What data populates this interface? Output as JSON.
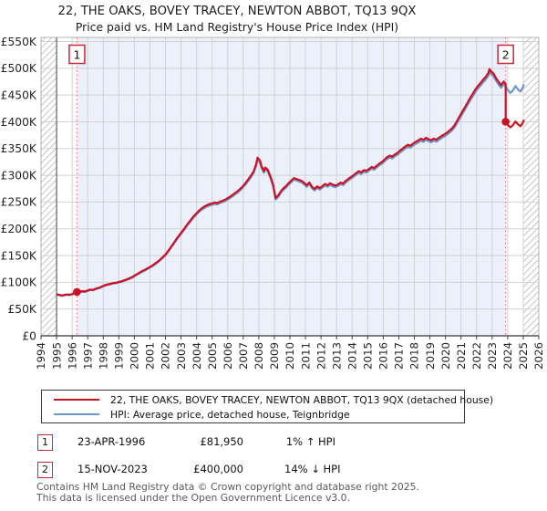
{
  "title": {
    "line1": "22, THE OAKS, BOVEY TRACEY, NEWTON ABBOT, TQ13 9QX",
    "line2": "Price paid vs. HM Land Registry's House Price Index (HPI)"
  },
  "footer": {
    "line1": "Contains HM Land Registry data © Crown copyright and database right 2025.",
    "line2": "This data is licensed under the Open Government Licence v3.0."
  },
  "chart_data": {
    "type": "line",
    "x_axis": {
      "range": [
        1994,
        2026
      ],
      "ticks": [
        1994,
        1995,
        1996,
        1997,
        1998,
        1999,
        2000,
        2001,
        2002,
        2003,
        2004,
        2005,
        2006,
        2007,
        2008,
        2009,
        2010,
        2011,
        2012,
        2013,
        2014,
        2015,
        2016,
        2017,
        2018,
        2019,
        2020,
        2021,
        2022,
        2023,
        2024,
        2025,
        2026
      ]
    },
    "y_axis": {
      "range_thousands": [
        0,
        550
      ],
      "tick_step_thousands": 50,
      "tick_labels": [
        "£0",
        "£50K",
        "£100K",
        "£150K",
        "£200K",
        "£250K",
        "£300K",
        "£350K",
        "£400K",
        "£450K",
        "£500K",
        "£550K"
      ]
    },
    "colors": {
      "price_line": "#cc1122",
      "hpi_line": "#6f96c9",
      "event_line": "#f4717f",
      "ownership_band": "#ebf0fa",
      "grid": "#d2d2d2",
      "hatch": "#c6c6c6",
      "marker_box_border": "#c8283c"
    },
    "ownership_band_years": [
      1996.31,
      2023.87
    ],
    "no_data_hatch_years": [
      [
        1994,
        1995.0
      ],
      [
        2025.04,
        2026
      ]
    ],
    "transactions": [
      {
        "label": "1",
        "date": "23-APR-1996",
        "year_decimal": 1996.31,
        "price_gbp": 81950,
        "price_display": "£81,950",
        "relative_to_hpi": "1% ↑ HPI"
      },
      {
        "label": "2",
        "date": "15-NOV-2023",
        "year_decimal": 2023.87,
        "price_gbp": 400000,
        "price_display": "£400,000",
        "relative_to_hpi": "14% ↓ HPI"
      }
    ],
    "series": [
      {
        "id": "price_paid",
        "legend": "22, THE OAKS, BOVEY TRACEY, NEWTON ABBOT, TQ13 9QX (detached house)",
        "color_key": "price_line",
        "derivation": "hpi_scaled_through_transactions"
      },
      {
        "id": "hpi",
        "legend": "HPI: Average price, detached house, Teignbridge",
        "color_key": "hpi_line",
        "points_year_valueK": [
          [
            1995.0,
            77.0
          ],
          [
            1995.17,
            75.8
          ],
          [
            1995.33,
            74.6
          ],
          [
            1995.5,
            75.6
          ],
          [
            1995.67,
            76.4
          ],
          [
            1995.83,
            75.9
          ],
          [
            1996.0,
            77.2
          ],
          [
            1996.17,
            79.5
          ],
          [
            1996.31,
            81.1
          ],
          [
            1996.5,
            81.8
          ],
          [
            1996.67,
            82.6
          ],
          [
            1996.83,
            82.0
          ],
          [
            1997.0,
            83.8
          ],
          [
            1997.17,
            85.6
          ],
          [
            1997.33,
            84.9
          ],
          [
            1997.5,
            86.8
          ],
          [
            1997.67,
            88.4
          ],
          [
            1997.83,
            90.1
          ],
          [
            1998.0,
            92.4
          ],
          [
            1998.17,
            94.1
          ],
          [
            1998.33,
            95.3
          ],
          [
            1998.5,
            96.6
          ],
          [
            1998.67,
            97.9
          ],
          [
            1998.83,
            98.3
          ],
          [
            1999.0,
            99.6
          ],
          [
            1999.17,
            100.8
          ],
          [
            1999.33,
            102.4
          ],
          [
            1999.5,
            104.2
          ],
          [
            1999.67,
            106.3
          ],
          [
            1999.83,
            108.1
          ],
          [
            2000.0,
            111.2
          ],
          [
            2000.17,
            114.1
          ],
          [
            2000.33,
            116.8
          ],
          [
            2000.5,
            119.6
          ],
          [
            2000.67,
            121.9
          ],
          [
            2000.83,
            124.6
          ],
          [
            2001.0,
            127.3
          ],
          [
            2001.17,
            130.2
          ],
          [
            2001.33,
            133.6
          ],
          [
            2001.5,
            137.2
          ],
          [
            2001.67,
            141.3
          ],
          [
            2001.83,
            145.6
          ],
          [
            2002.0,
            150.4
          ],
          [
            2002.17,
            156.8
          ],
          [
            2002.33,
            163.3
          ],
          [
            2002.5,
            170.2
          ],
          [
            2002.67,
            177.6
          ],
          [
            2002.83,
            184.1
          ],
          [
            2003.0,
            190.3
          ],
          [
            2003.17,
            196.8
          ],
          [
            2003.33,
            203.2
          ],
          [
            2003.5,
            209.8
          ],
          [
            2003.67,
            215.9
          ],
          [
            2003.83,
            221.6
          ],
          [
            2004.0,
            226.8
          ],
          [
            2004.17,
            231.7
          ],
          [
            2004.33,
            235.8
          ],
          [
            2004.5,
            238.9
          ],
          [
            2004.67,
            241.6
          ],
          [
            2004.83,
            243.5
          ],
          [
            2005.0,
            244.8
          ],
          [
            2005.17,
            246.5
          ],
          [
            2005.33,
            245.6
          ],
          [
            2005.5,
            247.9
          ],
          [
            2005.67,
            249.8
          ],
          [
            2005.83,
            251.7
          ],
          [
            2006.0,
            254.6
          ],
          [
            2006.17,
            257.8
          ],
          [
            2006.33,
            260.9
          ],
          [
            2006.5,
            264.6
          ],
          [
            2006.67,
            268.4
          ],
          [
            2006.83,
            272.6
          ],
          [
            2007.0,
            277.5
          ],
          [
            2007.17,
            283.4
          ],
          [
            2007.33,
            289.6
          ],
          [
            2007.5,
            296.4
          ],
          [
            2007.67,
            304.2
          ],
          [
            2007.83,
            317.5
          ],
          [
            2007.92,
            329.5
          ],
          [
            2008.08,
            323.8
          ],
          [
            2008.17,
            314.2
          ],
          [
            2008.33,
            304.6
          ],
          [
            2008.42,
            311.3
          ],
          [
            2008.58,
            306.8
          ],
          [
            2008.75,
            294.4
          ],
          [
            2008.92,
            279.6
          ],
          [
            2009.08,
            254.8
          ],
          [
            2009.25,
            259.6
          ],
          [
            2009.42,
            267.3
          ],
          [
            2009.58,
            272.6
          ],
          [
            2009.75,
            276.8
          ],
          [
            2009.92,
            282.4
          ],
          [
            2010.08,
            286.9
          ],
          [
            2010.25,
            291.6
          ],
          [
            2010.42,
            290.2
          ],
          [
            2010.58,
            288.4
          ],
          [
            2010.75,
            286.6
          ],
          [
            2010.92,
            282.8
          ],
          [
            2011.08,
            278.4
          ],
          [
            2011.25,
            283.6
          ],
          [
            2011.42,
            275.8
          ],
          [
            2011.58,
            271.6
          ],
          [
            2011.75,
            276.4
          ],
          [
            2011.92,
            273.2
          ],
          [
            2012.08,
            276.6
          ],
          [
            2012.25,
            280.8
          ],
          [
            2012.42,
            278.4
          ],
          [
            2012.58,
            282.2
          ],
          [
            2012.75,
            279.6
          ],
          [
            2012.92,
            277.8
          ],
          [
            2013.08,
            279.8
          ],
          [
            2013.25,
            283.4
          ],
          [
            2013.42,
            281.6
          ],
          [
            2013.58,
            286.4
          ],
          [
            2013.75,
            290.2
          ],
          [
            2013.92,
            293.6
          ],
          [
            2014.08,
            296.8
          ],
          [
            2014.25,
            300.6
          ],
          [
            2014.42,
            304.4
          ],
          [
            2014.58,
            302.2
          ],
          [
            2014.75,
            306.4
          ],
          [
            2014.92,
            305.2
          ],
          [
            2015.08,
            308.4
          ],
          [
            2015.25,
            312.2
          ],
          [
            2015.42,
            310.4
          ],
          [
            2015.58,
            314.6
          ],
          [
            2015.75,
            318.4
          ],
          [
            2015.92,
            321.6
          ],
          [
            2016.08,
            325.8
          ],
          [
            2016.25,
            330.4
          ],
          [
            2016.42,
            333.2
          ],
          [
            2016.58,
            331.4
          ],
          [
            2016.75,
            335.6
          ],
          [
            2016.92,
            338.4
          ],
          [
            2017.08,
            342.6
          ],
          [
            2017.25,
            346.4
          ],
          [
            2017.42,
            350.2
          ],
          [
            2017.58,
            353.4
          ],
          [
            2017.75,
            351.6
          ],
          [
            2017.92,
            355.4
          ],
          [
            2018.08,
            358.6
          ],
          [
            2018.25,
            361.4
          ],
          [
            2018.42,
            364.6
          ],
          [
            2018.58,
            362.4
          ],
          [
            2018.75,
            366.2
          ],
          [
            2018.92,
            363.6
          ],
          [
            2019.08,
            361.8
          ],
          [
            2019.25,
            364.6
          ],
          [
            2019.42,
            362.8
          ],
          [
            2019.58,
            366.4
          ],
          [
            2019.75,
            369.6
          ],
          [
            2019.92,
            372.4
          ],
          [
            2020.08,
            375.6
          ],
          [
            2020.25,
            379.4
          ],
          [
            2020.42,
            383.6
          ],
          [
            2020.58,
            389.4
          ],
          [
            2020.75,
            397.6
          ],
          [
            2020.92,
            406.4
          ],
          [
            2021.08,
            414.6
          ],
          [
            2021.25,
            422.8
          ],
          [
            2021.42,
            431.4
          ],
          [
            2021.58,
            439.6
          ],
          [
            2021.75,
            447.4
          ],
          [
            2021.92,
            455.6
          ],
          [
            2022.08,
            461.8
          ],
          [
            2022.25,
            467.4
          ],
          [
            2022.42,
            473.6
          ],
          [
            2022.58,
            478.4
          ],
          [
            2022.75,
            485.6
          ],
          [
            2022.83,
            493.4
          ],
          [
            2022.92,
            489.6
          ],
          [
            2023.08,
            485.4
          ],
          [
            2023.25,
            476.6
          ],
          [
            2023.42,
            469.4
          ],
          [
            2023.58,
            463.6
          ],
          [
            2023.75,
            470.4
          ],
          [
            2023.87,
            466.0
          ],
          [
            2024.0,
            459.6
          ],
          [
            2024.17,
            453.8
          ],
          [
            2024.33,
            458.4
          ],
          [
            2024.5,
            466.8
          ],
          [
            2024.67,
            460.2
          ],
          [
            2024.83,
            456.4
          ],
          [
            2025.0,
            465.6
          ],
          [
            2025.04,
            470.2
          ]
        ]
      }
    ]
  }
}
